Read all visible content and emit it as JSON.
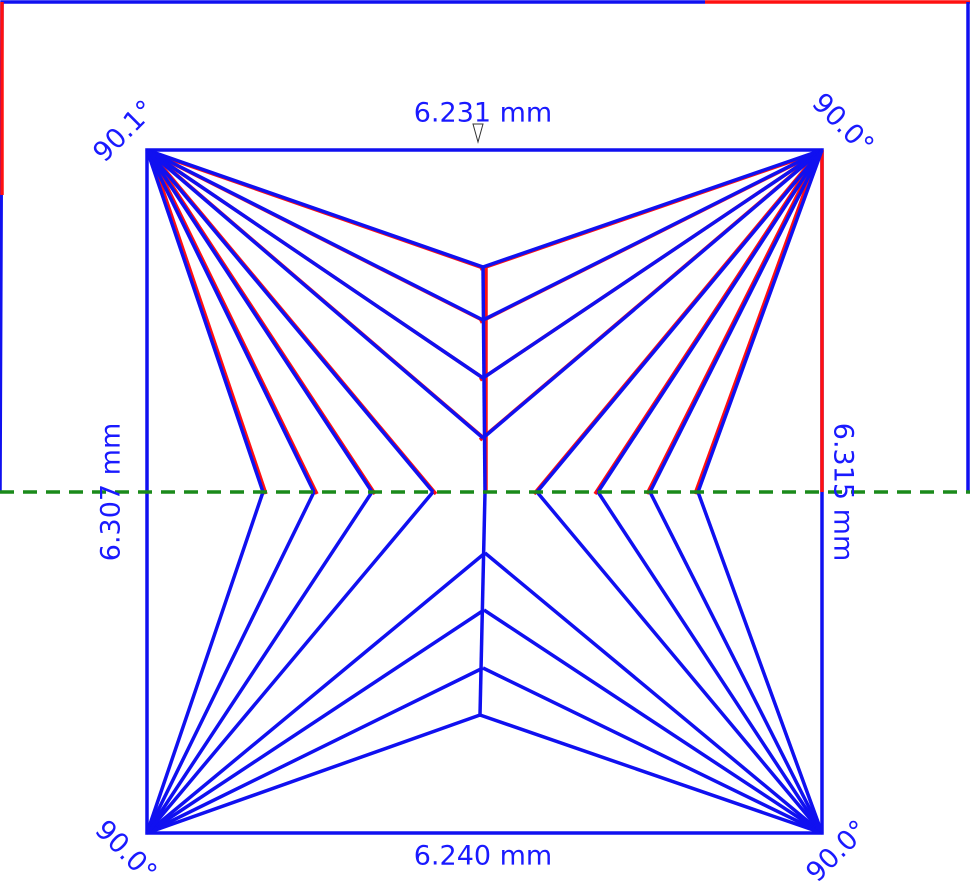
{
  "measurements": {
    "top": "6.231 mm",
    "bottom": "6.240 mm",
    "left": "6.307 mm",
    "right": "6.315 mm"
  },
  "angles": {
    "top_left": "90.1°",
    "top_right": "90.0°",
    "bottom_left": "90.0°",
    "bottom_right": "90.0°"
  }
}
